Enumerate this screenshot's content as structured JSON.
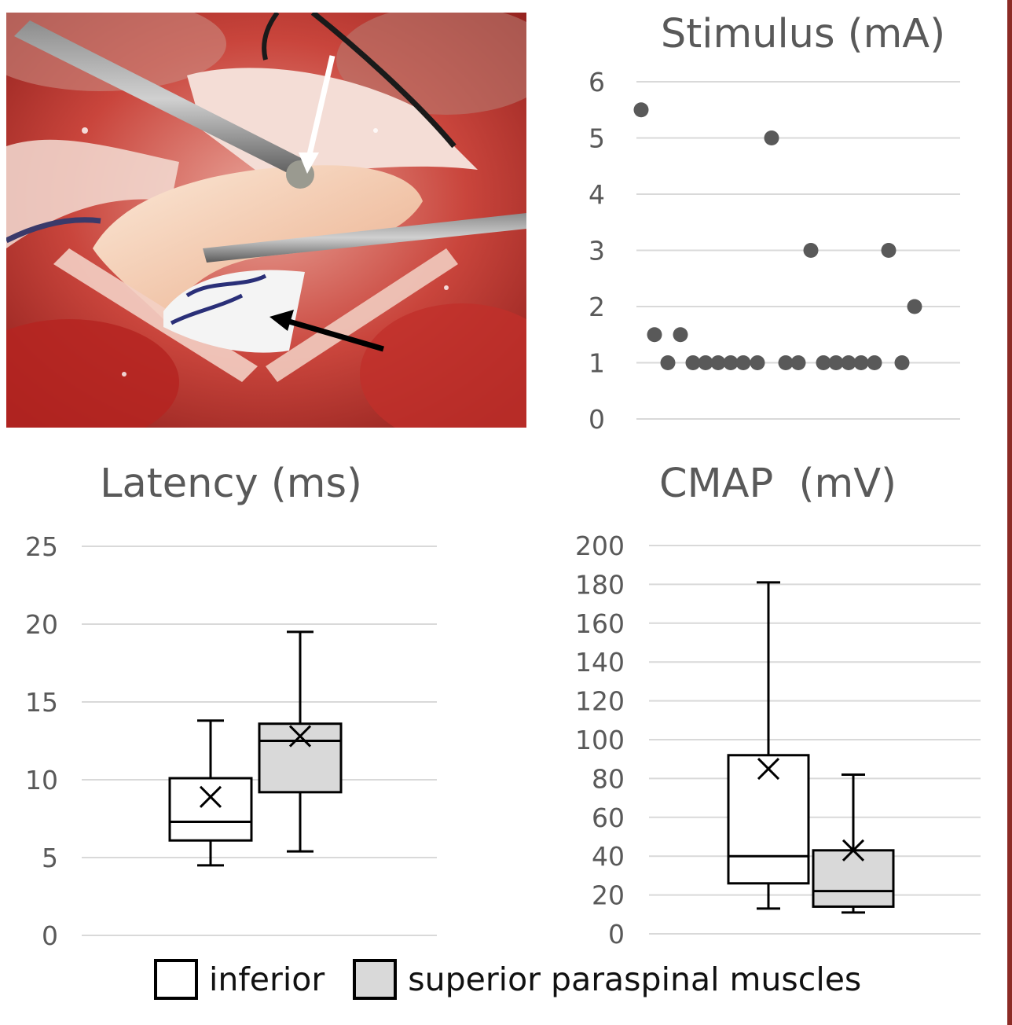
{
  "chart_data": [
    {
      "type": "scatter",
      "title": "Stimulus (mA)",
      "ylim": [
        0,
        6
      ],
      "yticks": [
        "0",
        "1",
        "2",
        "3",
        "4",
        "5",
        "6"
      ],
      "points": [
        {
          "x": 1,
          "y": 5.5
        },
        {
          "x": 2,
          "y": 1.5
        },
        {
          "x": 3,
          "y": 1
        },
        {
          "x": 4,
          "y": 1.5
        },
        {
          "x": 5,
          "y": 1
        },
        {
          "x": 6,
          "y": 1
        },
        {
          "x": 7,
          "y": 1
        },
        {
          "x": 8,
          "y": 1
        },
        {
          "x": 9,
          "y": 1
        },
        {
          "x": 10,
          "y": 1
        },
        {
          "x": 11,
          "y": 5
        },
        {
          "x": 12,
          "y": 1
        },
        {
          "x": 13,
          "y": 1
        },
        {
          "x": 14,
          "y": 3
        },
        {
          "x": 15,
          "y": 1
        },
        {
          "x": 16,
          "y": 1
        },
        {
          "x": 17,
          "y": 1
        },
        {
          "x": 18,
          "y": 1
        },
        {
          "x": 19,
          "y": 1
        },
        {
          "x": 20,
          "y": 3
        },
        {
          "x": 21,
          "y": 1
        },
        {
          "x": 22,
          "y": 2
        }
      ]
    },
    {
      "type": "box",
      "title": "Latency (ms)",
      "ylim": [
        0,
        25
      ],
      "yticks": [
        "0",
        "5",
        "10",
        "15",
        "20",
        "25"
      ],
      "boxes": [
        {
          "group": "inferior",
          "min": 4.5,
          "q1": 6.1,
          "median": 7.3,
          "q3": 10.1,
          "max": 13.8,
          "mean": 8.9
        },
        {
          "group": "superior paraspinal muscles",
          "min": 5.4,
          "q1": 9.2,
          "median": 12.5,
          "q3": 13.6,
          "max": 19.5,
          "mean": 12.8
        }
      ]
    },
    {
      "type": "box",
      "title": "CMAP  (mV)",
      "ylim": [
        0,
        200
      ],
      "yticks": [
        "0",
        "20",
        "40",
        "60",
        "80",
        "100",
        "120",
        "140",
        "160",
        "180",
        "200"
      ],
      "boxes": [
        {
          "group": "inferior",
          "min": 13,
          "q1": 26,
          "median": 40,
          "q3": 92,
          "max": 181,
          "mean": 85
        },
        {
          "group": "superior paraspinal muscles",
          "min": 11,
          "q1": 14,
          "median": 22,
          "q3": 43,
          "max": 82,
          "mean": 43
        }
      ]
    }
  ],
  "legend": {
    "items": [
      {
        "label": "inferior",
        "color": "#ffffff"
      },
      {
        "label": "superior paraspinal muscles",
        "color": "#d9d9d9"
      }
    ]
  },
  "colors": {
    "grid": "#d9d9d9",
    "tick_text": "#595959",
    "title_text": "#595959",
    "marker": "#595959",
    "box_stroke": "#000000",
    "superior_fill": "#d9d9d9",
    "inferior_fill": "#ffffff"
  }
}
